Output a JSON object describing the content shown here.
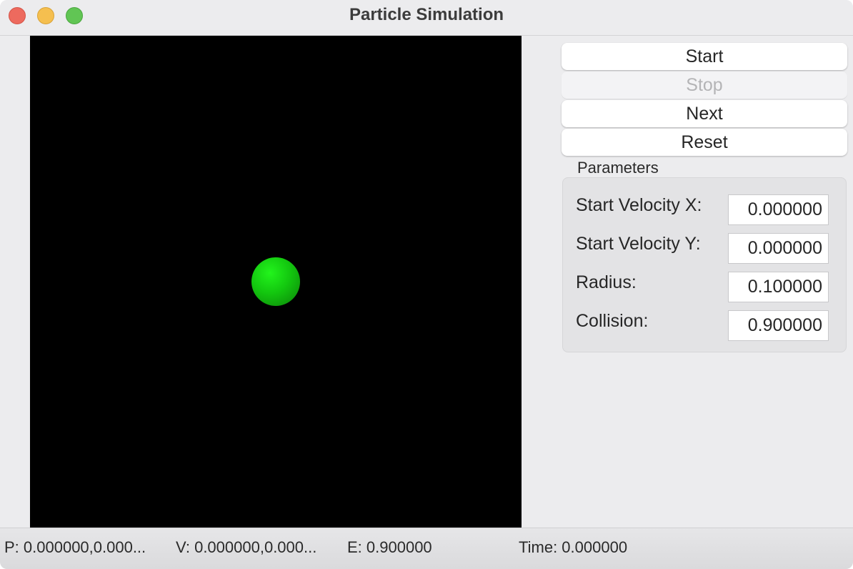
{
  "window": {
    "title": "Particle Simulation"
  },
  "controls": {
    "start_label": "Start",
    "stop_label": "Stop",
    "next_label": "Next",
    "reset_label": "Reset"
  },
  "parameters": {
    "group_title": "Parameters",
    "fields": [
      {
        "label": "Start Velocity X:",
        "value": "0.000000"
      },
      {
        "label": "Start Velocity Y:",
        "value": "0.000000"
      },
      {
        "label": "Radius:",
        "value": "0.100000"
      },
      {
        "label": "Collision:",
        "value": "0.900000"
      }
    ]
  },
  "status": {
    "position": "P: 0.000000,0.000...",
    "velocity": "V: 0.000000,0.000...",
    "energy": "E: 0.900000",
    "time": "Time: 0.000000"
  },
  "colors": {
    "canvas_background": "#000000",
    "particle": "#13c70f"
  }
}
